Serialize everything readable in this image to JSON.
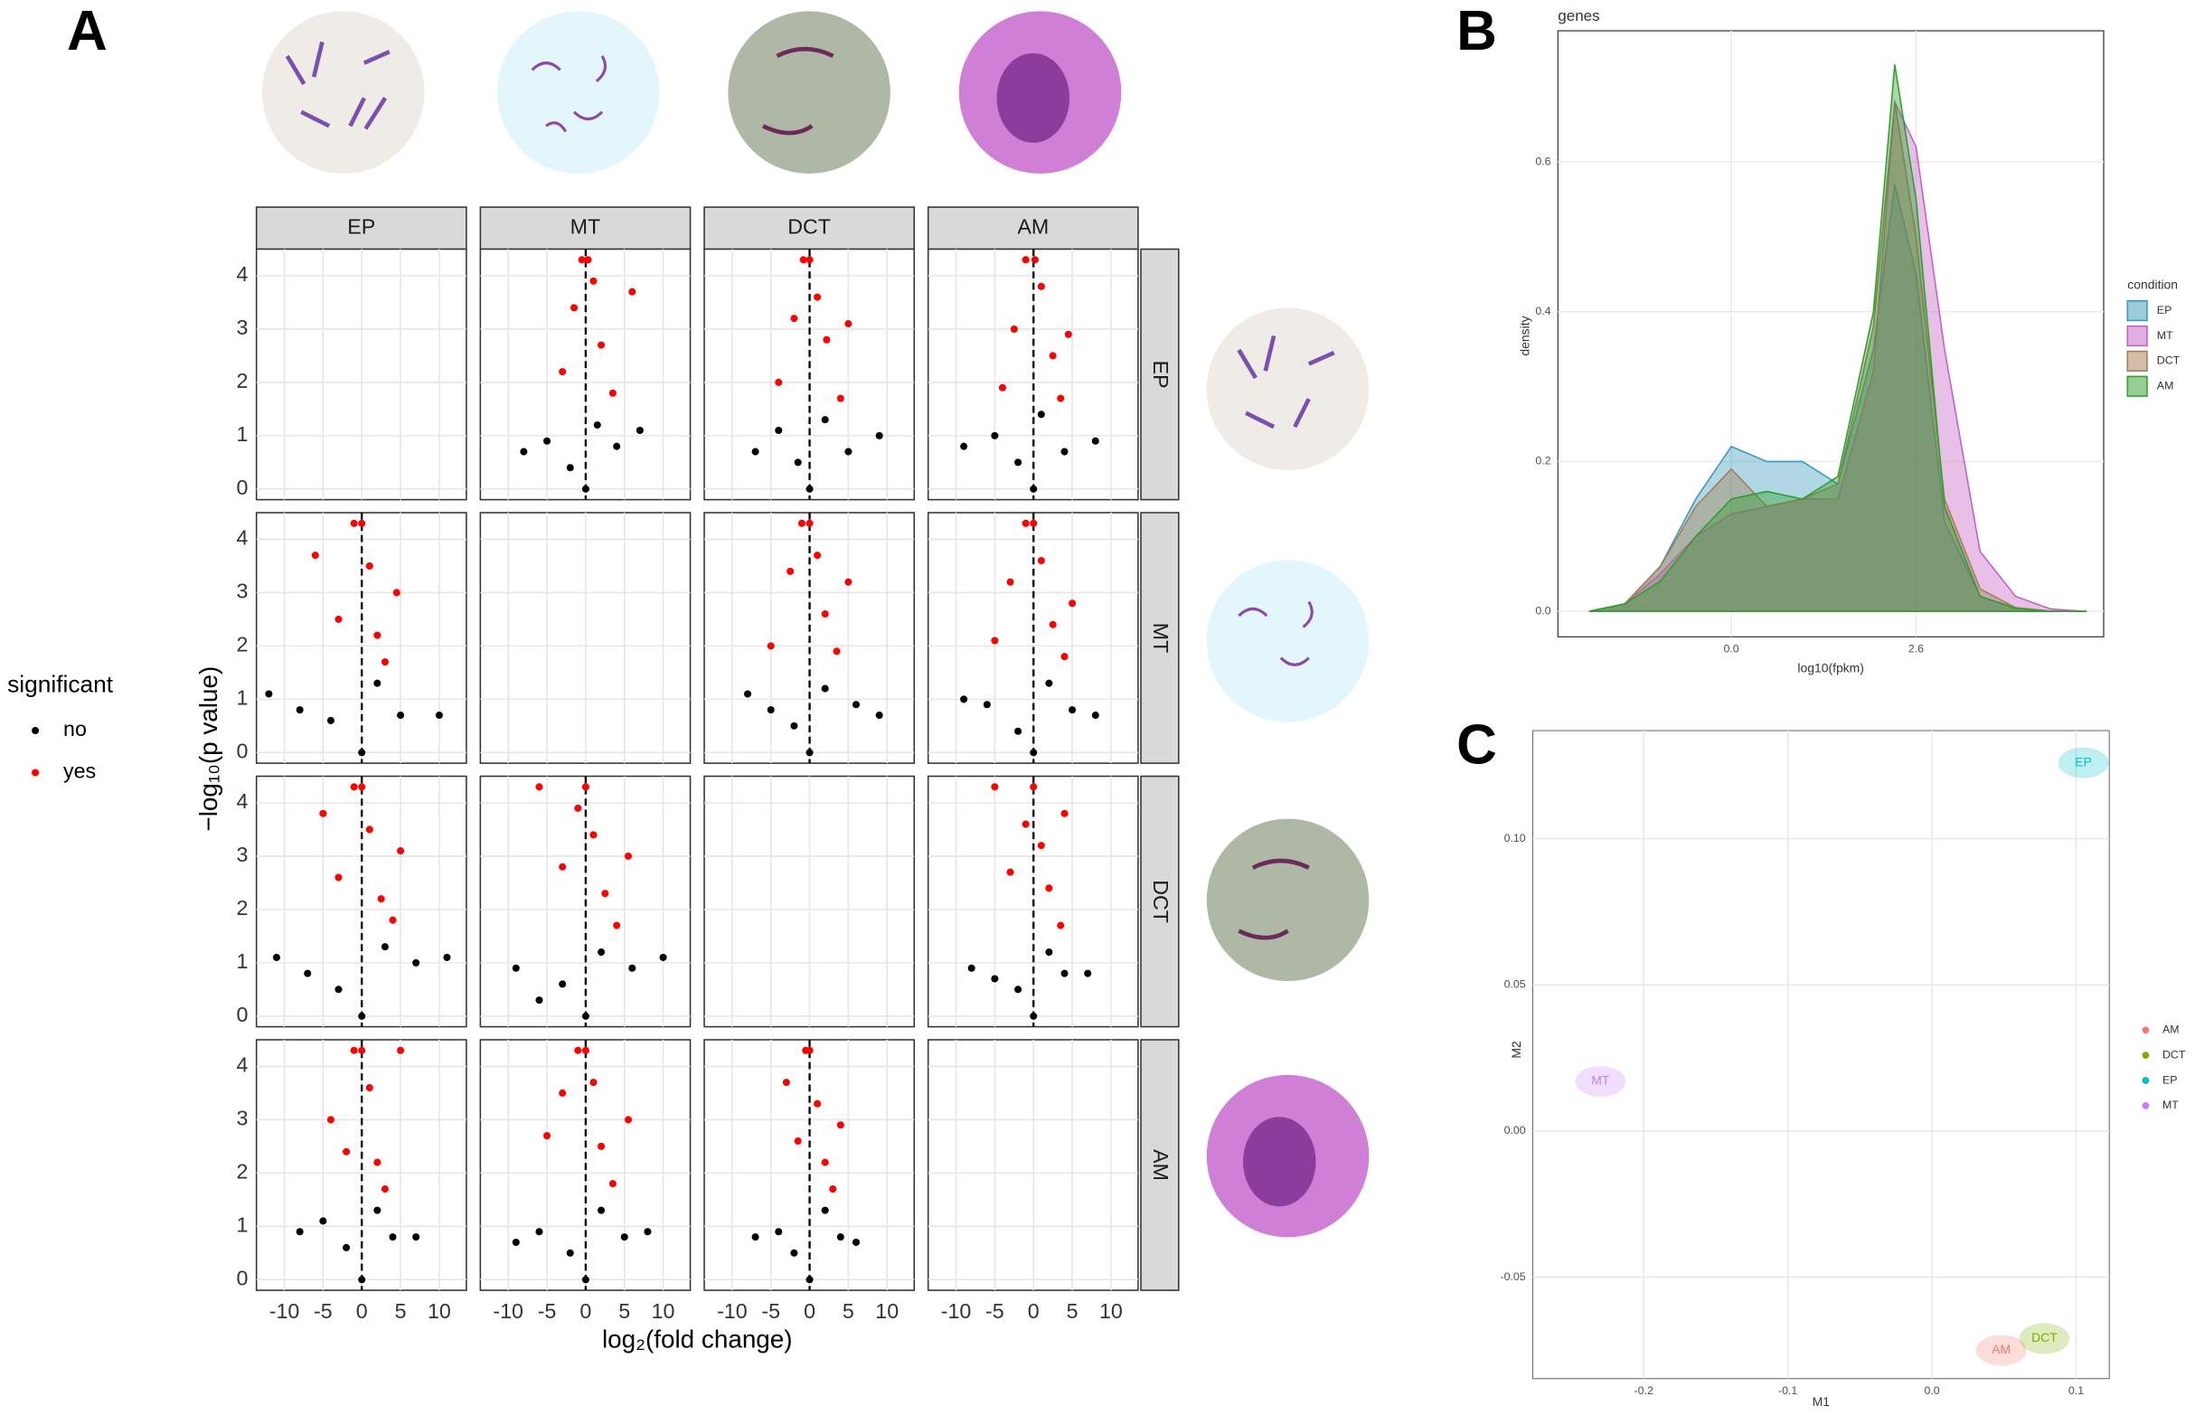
{
  "chart_data": [
    {
      "type": "volcano-grid",
      "panel_label": "A",
      "facets": [
        "EP",
        "MT",
        "DCT",
        "AM"
      ],
      "xlabel": "log₂(fold change)",
      "ylabel": "−log₁₀(p value)",
      "legend_title": "significant",
      "series": [
        {
          "name": "no",
          "color": "#000000"
        },
        {
          "name": "yes",
          "color": "#ff0000"
        }
      ],
      "xlim": [
        -13.6,
        13.5
      ],
      "ylim": [
        -0.2,
        4.5
      ],
      "xticks": [
        -10,
        -5,
        0,
        5,
        10
      ],
      "yticks": [
        0,
        1,
        2,
        3,
        4
      ],
      "grid": true,
      "panels": [
        null,
        {
          "series": [
            {
              "x": [
                -8,
                -5,
                -2,
                0,
                1.5,
                4,
                7
              ],
              "y": [
                0.7,
                0.9,
                0.4,
                0,
                1.2,
                0.8,
                1.1
              ]
            },
            {
              "x": [
                -3,
                -1.5,
                -0.5,
                0.3,
                1,
                2,
                3.5,
                6
              ],
              "y": [
                2.2,
                3.4,
                4.3,
                4.3,
                3.9,
                2.7,
                1.8,
                3.7
              ]
            }
          ]
        },
        {
          "series": [
            {
              "x": [
                -7,
                -4,
                -1.5,
                0,
                2,
                5,
                9
              ],
              "y": [
                0.7,
                1.1,
                0.5,
                0,
                1.3,
                0.7,
                1.0
              ]
            },
            {
              "x": [
                -4,
                -2,
                -0.8,
                0,
                1,
                2.2,
                4,
                5
              ],
              "y": [
                2.0,
                3.2,
                4.3,
                4.3,
                3.6,
                2.8,
                1.7,
                3.1
              ]
            }
          ]
        },
        {
          "series": [
            {
              "x": [
                -9,
                -5,
                -2,
                0,
                1,
                4,
                8
              ],
              "y": [
                0.8,
                1.0,
                0.5,
                0,
                1.4,
                0.7,
                0.9
              ]
            },
            {
              "x": [
                -4,
                -2.5,
                -1,
                0.2,
                1,
                2.5,
                3.5,
                4.5
              ],
              "y": [
                1.9,
                3.0,
                4.3,
                4.3,
                3.8,
                2.5,
                1.7,
                2.9
              ]
            }
          ]
        },
        {
          "series": [
            {
              "x": [
                -12,
                -8,
                -4,
                0,
                2,
                5,
                10
              ],
              "y": [
                1.1,
                0.8,
                0.6,
                0,
                1.3,
                0.7,
                0.7
              ]
            },
            {
              "x": [
                -6,
                -3,
                -1,
                0,
                1,
                2,
                3,
                4.5
              ],
              "y": [
                3.7,
                2.5,
                4.3,
                4.3,
                3.5,
                2.2,
                1.7,
                3.0
              ]
            }
          ]
        },
        null,
        {
          "series": [
            {
              "x": [
                -8,
                -5,
                -2,
                0,
                2,
                6,
                9
              ],
              "y": [
                1.1,
                0.8,
                0.5,
                0,
                1.2,
                0.9,
                0.7
              ]
            },
            {
              "x": [
                -5,
                -2.5,
                -1,
                0,
                1,
                2,
                3.5,
                5
              ],
              "y": [
                2.0,
                3.4,
                4.3,
                4.3,
                3.7,
                2.6,
                1.9,
                3.2
              ]
            }
          ]
        },
        {
          "series": [
            {
              "x": [
                -9,
                -6,
                -2,
                0,
                2,
                5,
                8
              ],
              "y": [
                1.0,
                0.9,
                0.4,
                0,
                1.3,
                0.8,
                0.7
              ]
            },
            {
              "x": [
                -5,
                -3,
                -1,
                0,
                1,
                2.5,
                4,
                5
              ],
              "y": [
                2.1,
                3.2,
                4.3,
                4.3,
                3.6,
                2.4,
                1.8,
                2.8
              ]
            }
          ]
        },
        {
          "series": [
            {
              "x": [
                -11,
                -7,
                -3,
                0,
                3,
                7,
                11
              ],
              "y": [
                1.1,
                0.8,
                0.5,
                0,
                1.3,
                1.0,
                1.1
              ]
            },
            {
              "x": [
                -5,
                -3,
                -1,
                0,
                1,
                2.5,
                4,
                5
              ],
              "y": [
                3.8,
                2.6,
                4.3,
                4.3,
                3.5,
                2.2,
                1.8,
                3.1
              ]
            }
          ]
        },
        {
          "series": [
            {
              "x": [
                -9,
                -6,
                -3,
                0,
                2,
                6,
                10
              ],
              "y": [
                0.9,
                0.3,
                0.6,
                0,
                1.2,
                0.9,
                1.1
              ]
            },
            {
              "x": [
                -6,
                -3,
                -1,
                0,
                1,
                2.5,
                4,
                5.5
              ],
              "y": [
                4.3,
                2.8,
                3.9,
                4.3,
                3.4,
                2.3,
                1.7,
                3.0
              ]
            }
          ]
        },
        null,
        {
          "series": [
            {
              "x": [
                -8,
                -5,
                -2,
                0,
                2,
                4,
                7
              ],
              "y": [
                0.9,
                0.7,
                0.5,
                0,
                1.2,
                0.8,
                0.8
              ]
            },
            {
              "x": [
                -5,
                -3,
                -1,
                0,
                1,
                2,
                3.5,
                4
              ],
              "y": [
                4.3,
                2.7,
                3.6,
                4.3,
                3.2,
                2.4,
                1.7,
                3.8
              ]
            }
          ]
        },
        {
          "series": [
            {
              "x": [
                -8,
                -5,
                -2,
                0,
                2,
                4,
                7
              ],
              "y": [
                0.9,
                1.1,
                0.6,
                0,
                1.3,
                0.8,
                0.8
              ]
            },
            {
              "x": [
                -4,
                -2,
                -1,
                0,
                1,
                2,
                3,
                5
              ],
              "y": [
                3.0,
                2.4,
                4.3,
                4.3,
                3.6,
                2.2,
                1.7,
                4.3
              ]
            }
          ]
        },
        {
          "series": [
            {
              "x": [
                -9,
                -6,
                -2,
                0,
                2,
                5,
                8
              ],
              "y": [
                0.7,
                0.9,
                0.5,
                0,
                1.3,
                0.8,
                0.9
              ]
            },
            {
              "x": [
                -5,
                -3,
                -1,
                0,
                1,
                2,
                3.5,
                5.5
              ],
              "y": [
                2.7,
                3.5,
                4.3,
                4.3,
                3.7,
                2.5,
                1.8,
                3.0
              ]
            }
          ]
        },
        {
          "series": [
            {
              "x": [
                -7,
                -4,
                -2,
                0,
                2,
                4,
                6
              ],
              "y": [
                0.8,
                0.9,
                0.5,
                0,
                1.3,
                0.8,
                0.7
              ]
            },
            {
              "x": [
                -3,
                -1.5,
                -0.5,
                0,
                1,
                2,
                3,
                4
              ],
              "y": [
                3.7,
                2.6,
                4.3,
                4.3,
                3.3,
                2.2,
                1.7,
                2.9
              ]
            }
          ]
        },
        null
      ]
    },
    {
      "type": "area",
      "panel_label": "B",
      "title": "genes",
      "xlabel": "log10(fpkm)",
      "ylabel": "density",
      "legend_title": "condition",
      "x": [
        -2,
        -1.5,
        -1,
        -0.5,
        0,
        0.5,
        1,
        1.5,
        2,
        2.3,
        2.6,
        3,
        3.5,
        4,
        4.5,
        5
      ],
      "series": [
        {
          "name": "EP",
          "color": "#3a9ab8",
          "values": [
            0,
            0.01,
            0.06,
            0.15,
            0.22,
            0.2,
            0.2,
            0.17,
            0.35,
            0.57,
            0.45,
            0.12,
            0.02,
            0.005,
            0,
            0
          ]
        },
        {
          "name": "MT",
          "color": "#c45fc4",
          "values": [
            0,
            0.01,
            0.05,
            0.1,
            0.13,
            0.14,
            0.15,
            0.15,
            0.32,
            0.68,
            0.62,
            0.35,
            0.08,
            0.02,
            0.003,
            0
          ]
        },
        {
          "name": "DCT",
          "color": "#a67c52",
          "values": [
            0,
            0.01,
            0.06,
            0.14,
            0.19,
            0.14,
            0.15,
            0.17,
            0.38,
            0.68,
            0.5,
            0.15,
            0.03,
            0.005,
            0,
            0
          ]
        },
        {
          "name": "AM",
          "color": "#2e9e2e",
          "values": [
            0,
            0.01,
            0.04,
            0.1,
            0.15,
            0.16,
            0.15,
            0.18,
            0.4,
            0.73,
            0.55,
            0.14,
            0.02,
            0.004,
            0,
            0
          ]
        }
      ],
      "xlim": [
        -2.44,
        5.24
      ],
      "ylim": [
        -0.034,
        0.775
      ],
      "xticks": [
        {
          "value": 0,
          "label": "0.0"
        },
        2.6
      ],
      "yticks": [
        {
          "value": 0,
          "label": "0.0"
        },
        0.2,
        0.4,
        0.6
      ],
      "grid": true
    },
    {
      "type": "scatter",
      "panel_label": "C",
      "xlabel": "M1",
      "ylabel": "M2",
      "series": [
        {
          "name": "AM",
          "color": "#f8766d",
          "x": [
            0.048
          ],
          "y": [
            -0.075
          ]
        },
        {
          "name": "DCT",
          "color": "#7cae00",
          "x": [
            0.078
          ],
          "y": [
            -0.071
          ]
        },
        {
          "name": "EP",
          "color": "#00bfc4",
          "x": [
            0.105
          ],
          "y": [
            0.126
          ]
        },
        {
          "name": "MT",
          "color": "#c77cff",
          "x": [
            -0.23
          ],
          "y": [
            0.017
          ]
        }
      ],
      "xlim": [
        -0.277,
        0.123
      ],
      "ylim": [
        -0.0847,
        0.137
      ],
      "xticks": [
        -0.2,
        -0.1,
        {
          "value": 0,
          "label": "0.0"
        },
        0.1
      ],
      "yticks": [
        {
          "value": -0.05,
          "label": "-0.05"
        },
        {
          "value": 0,
          "label": "0.00"
        },
        0.05,
        {
          "value": 0.1,
          "label": "0.10"
        }
      ],
      "grid": true
    }
  ]
}
